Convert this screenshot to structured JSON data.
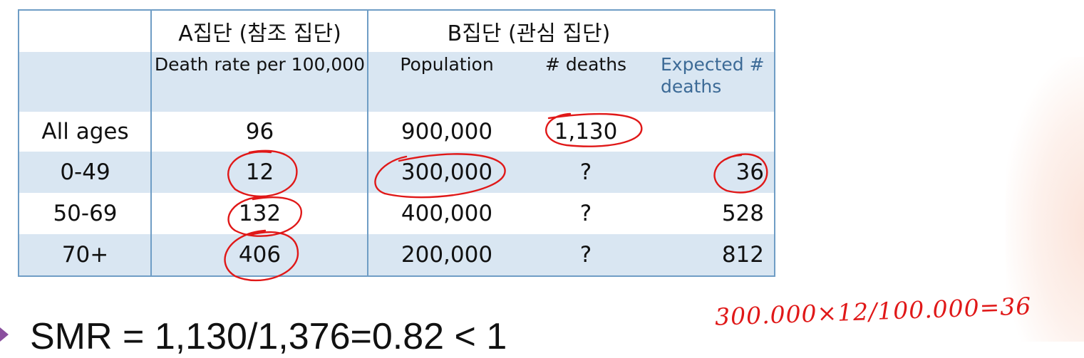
{
  "table": {
    "group_a_header": "A집단 (참조 집단)",
    "group_b_header": "B집단 (관심 집단)",
    "subheaders": {
      "death_rate": "Death rate per 100,000",
      "population": "Population",
      "deaths": "# deaths",
      "expected": "Expected # deaths"
    },
    "rows": [
      {
        "age": "All ages",
        "death_rate": "96",
        "population": "900,000",
        "deaths": "1,130",
        "expected": ""
      },
      {
        "age": "0-49",
        "death_rate": "12",
        "population": "300,000",
        "deaths": "?",
        "expected": "36"
      },
      {
        "age": "50-69",
        "death_rate": "132",
        "population": "400,000",
        "deaths": "?",
        "expected": "528"
      },
      {
        "age": "70+",
        "death_rate": "406",
        "population": "200,000",
        "deaths": "?",
        "expected": "812"
      }
    ]
  },
  "handwritten_note": "300.000×12/100.000=36",
  "smr_line": "SMR = 1,130/1,376=0.82 < 1",
  "colors": {
    "table_border": "#6f9dc5",
    "shaded_row": "#d9e6f2",
    "expected_header_text": "#3c6a96",
    "annotation_ink": "#e01818",
    "bullet": "#8a4f9e"
  }
}
